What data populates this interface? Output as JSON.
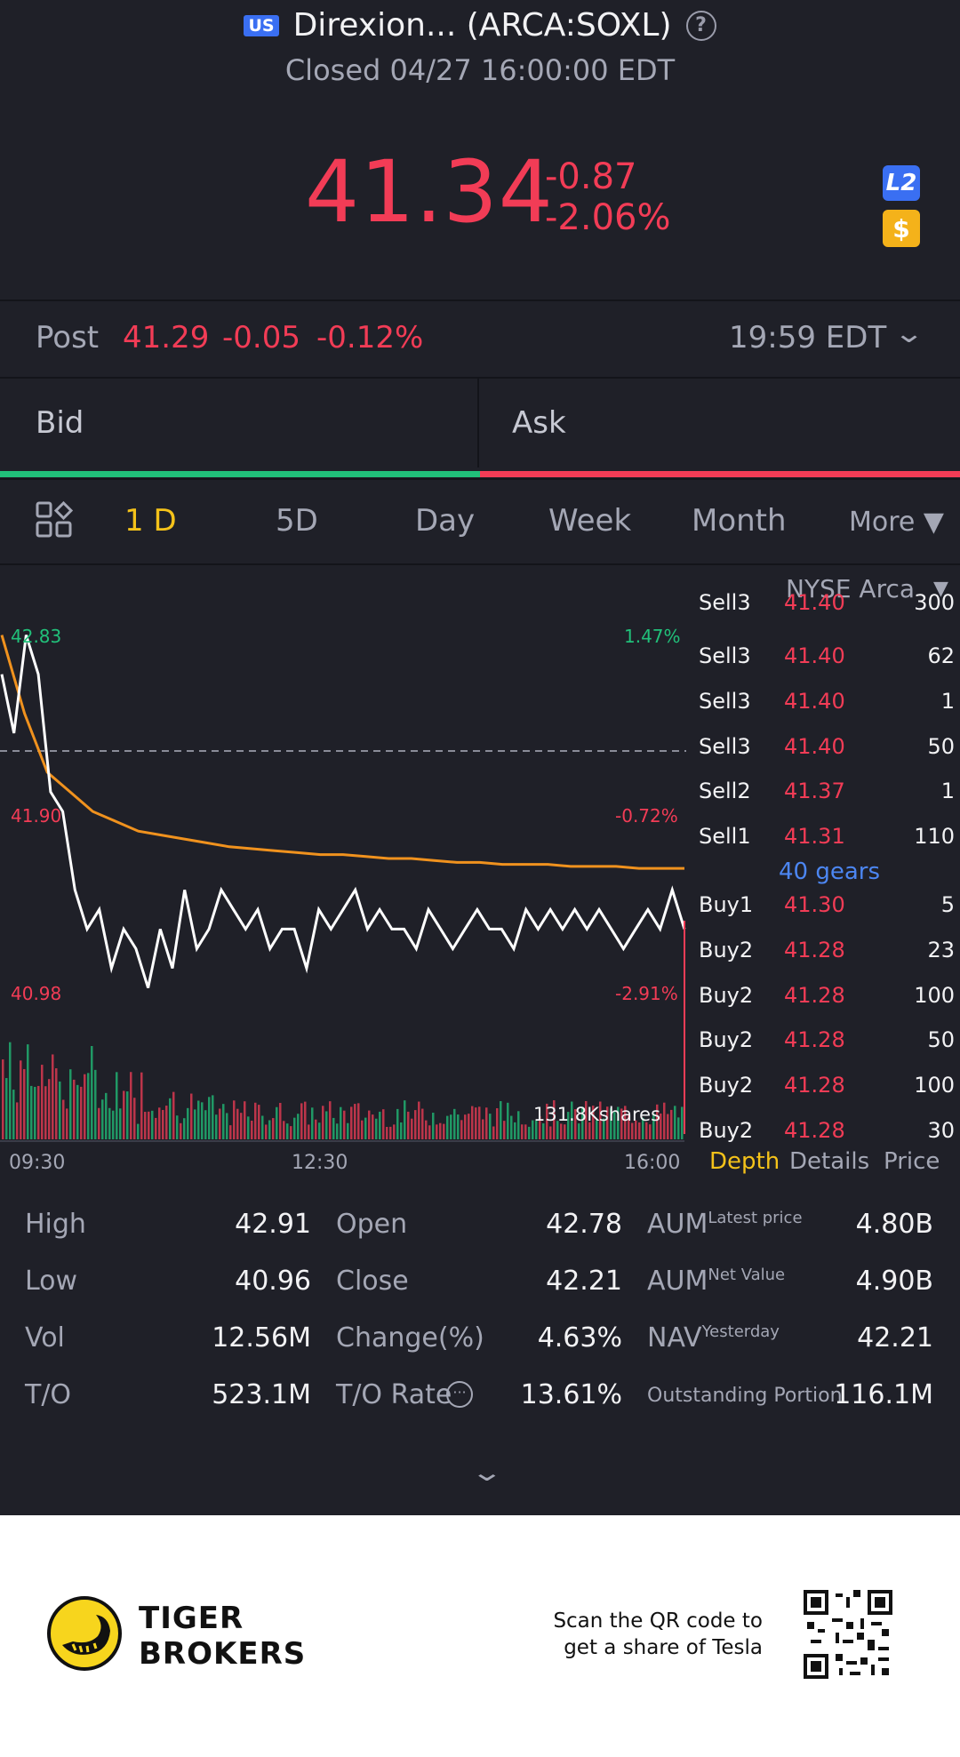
{
  "header": {
    "market_badge": "US",
    "title": "Direxion... (ARCA:SOXL)",
    "status": "Closed 04/27 16:00:00 EDT",
    "price": "41.34",
    "change": "-0.87",
    "change_pct": "-2.06%",
    "l2_label": "L2",
    "dollar_label": "$"
  },
  "post": {
    "label": "Post",
    "price": "41.29",
    "change": "-0.05",
    "change_pct": "-0.12%",
    "time": "19:59 EDT"
  },
  "bid_ask": {
    "bid_label": "Bid",
    "ask_label": "Ask"
  },
  "tabs": [
    {
      "label": "1 D",
      "active": true
    },
    {
      "label": "5D"
    },
    {
      "label": "Day"
    },
    {
      "label": "Week"
    },
    {
      "label": "Month"
    },
    {
      "label": "More ▼"
    }
  ],
  "chart": {
    "high_price": "42.83",
    "high_pct": "1.47%",
    "mid_price": "41.90",
    "mid_pct": "-0.72%",
    "low_price": "40.98",
    "low_pct": "-2.91%",
    "volume_label": "131.8Kshares",
    "time_start": "09:30",
    "time_mid": "12:30",
    "time_end": "16:00"
  },
  "chart_data": {
    "type": "line",
    "y_range": [
      40.98,
      42.83
    ],
    "prev_close": 42.21,
    "x_labels": [
      "09:30",
      "12:30",
      "16:00"
    ],
    "series": [
      {
        "values": [
          42.6,
          42.3,
          42.8,
          42.6,
          42.0,
          41.9,
          41.5,
          41.3,
          41.4,
          41.1,
          41.3,
          41.2,
          41.0,
          41.3,
          41.1,
          41.5,
          41.2,
          41.3,
          41.5,
          41.4,
          41.3,
          41.4,
          41.2,
          41.3,
          41.3,
          41.1,
          41.4,
          41.3,
          41.4,
          41.5,
          41.3,
          41.4,
          41.3,
          41.3,
          41.2,
          41.4,
          41.3,
          41.2,
          41.3,
          41.4,
          41.3,
          41.3,
          41.2,
          41.4,
          41.3,
          41.4,
          41.3,
          41.4,
          41.3,
          41.4,
          41.3,
          41.2,
          41.3,
          41.4,
          41.3,
          41.5,
          41.3
        ]
      },
      {
        "values": [
          42.8,
          42.4,
          42.1,
          42.0,
          41.9,
          41.85,
          41.8,
          41.78,
          41.76,
          41.74,
          41.72,
          41.71,
          41.7,
          41.69,
          41.68,
          41.68,
          41.67,
          41.66,
          41.66,
          41.65,
          41.64,
          41.64,
          41.63,
          41.63,
          41.63,
          41.62,
          41.62,
          41.62,
          41.61,
          41.61,
          41.61
        ]
      }
    ]
  },
  "orderbook": {
    "exchange": "NYSE Arca",
    "rows_top": [
      {
        "side": "Sell3",
        "price": "41.40",
        "qty": "300"
      },
      {
        "side": "Sell3",
        "price": "41.40",
        "qty": "62"
      },
      {
        "side": "Sell3",
        "price": "41.40",
        "qty": "1"
      },
      {
        "side": "Sell3",
        "price": "41.40",
        "qty": "50"
      },
      {
        "side": "Sell2",
        "price": "41.37",
        "qty": "1"
      },
      {
        "side": "Sell1",
        "price": "41.31",
        "qty": "110"
      }
    ],
    "gears": "40 gears",
    "rows_bottom": [
      {
        "side": "Buy1",
        "price": "41.30",
        "qty": "5"
      },
      {
        "side": "Buy2",
        "price": "41.28",
        "qty": "23"
      },
      {
        "side": "Buy2",
        "price": "41.28",
        "qty": "100"
      },
      {
        "side": "Buy2",
        "price": "41.28",
        "qty": "50"
      },
      {
        "side": "Buy2",
        "price": "41.28",
        "qty": "100"
      },
      {
        "side": "Buy2",
        "price": "41.28",
        "qty": "30"
      }
    ],
    "tabs": [
      "Depth",
      "Details",
      "Price"
    ]
  },
  "stats": {
    "high_label": "High",
    "high": "42.91",
    "low_label": "Low",
    "low": "40.96",
    "vol_label": "Vol",
    "vol": "12.56M",
    "to_label": "T/O",
    "to": "523.1M",
    "open_label": "Open",
    "open": "42.78",
    "close_label": "Close",
    "close": "42.21",
    "change_label": "Change(%)",
    "change": "4.63%",
    "torate_label": "T/O Rate",
    "torate": "13.61%",
    "aum1_label": "AUM",
    "aum1_sup": "Latest price",
    "aum1": "4.80B",
    "aum2_label": "AUM",
    "aum2_sup": "Net Value",
    "aum2": "4.90B",
    "nav_label": "NAV",
    "nav_sup": "Yesterday",
    "nav": "42.21",
    "outstanding_label": "Outstanding Portion",
    "outstanding": "116.1M"
  },
  "footer": {
    "brand_line1": "TIGER",
    "brand_line2": "BROKERS",
    "scan_line1": "Scan the QR code to",
    "scan_line2": "get a share of Tesla"
  },
  "colors": {
    "background": "#1f2028",
    "red": "#f23c56",
    "green": "#21c07a",
    "accent_yellow": "#f4c21a",
    "avg_line": "#f0921e",
    "blue": "#4c86f2"
  }
}
